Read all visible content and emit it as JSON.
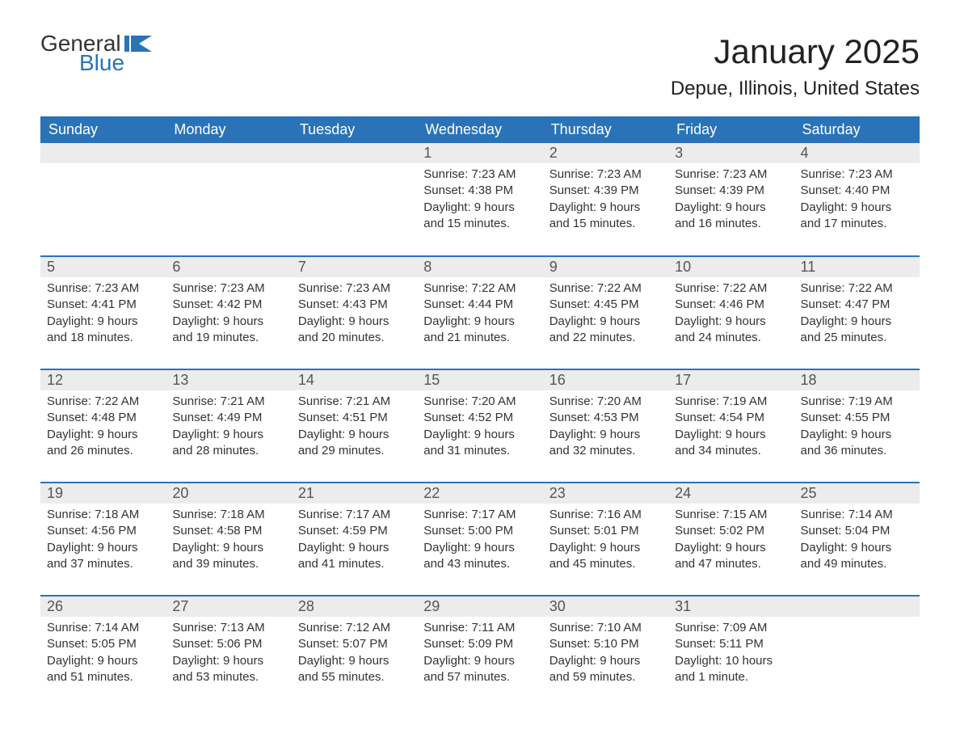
{
  "logo": {
    "word1": "General",
    "word2": "Blue"
  },
  "header": {
    "month_title": "January 2025",
    "location": "Depue, Illinois, United States"
  },
  "colors": {
    "header_bg": "#2a73b8",
    "header_text": "#ffffff",
    "daynum_bg": "#ececec",
    "daynum_text": "#555555",
    "body_text": "#333333",
    "page_bg": "#ffffff",
    "rule": "#2a73b8"
  },
  "typography": {
    "month_title_fontsize": 42,
    "location_fontsize": 24,
    "weekday_fontsize": 18,
    "daynum_fontsize": 18,
    "body_fontsize": 15
  },
  "weekdays": [
    "Sunday",
    "Monday",
    "Tuesday",
    "Wednesday",
    "Thursday",
    "Friday",
    "Saturday"
  ],
  "weeks": [
    [
      {
        "empty": true
      },
      {
        "empty": true
      },
      {
        "empty": true
      },
      {
        "n": "1",
        "sunrise": "Sunrise: 7:23 AM",
        "sunset": "Sunset: 4:38 PM",
        "dl1": "Daylight: 9 hours",
        "dl2": "and 15 minutes."
      },
      {
        "n": "2",
        "sunrise": "Sunrise: 7:23 AM",
        "sunset": "Sunset: 4:39 PM",
        "dl1": "Daylight: 9 hours",
        "dl2": "and 15 minutes."
      },
      {
        "n": "3",
        "sunrise": "Sunrise: 7:23 AM",
        "sunset": "Sunset: 4:39 PM",
        "dl1": "Daylight: 9 hours",
        "dl2": "and 16 minutes."
      },
      {
        "n": "4",
        "sunrise": "Sunrise: 7:23 AM",
        "sunset": "Sunset: 4:40 PM",
        "dl1": "Daylight: 9 hours",
        "dl2": "and 17 minutes."
      }
    ],
    [
      {
        "n": "5",
        "sunrise": "Sunrise: 7:23 AM",
        "sunset": "Sunset: 4:41 PM",
        "dl1": "Daylight: 9 hours",
        "dl2": "and 18 minutes."
      },
      {
        "n": "6",
        "sunrise": "Sunrise: 7:23 AM",
        "sunset": "Sunset: 4:42 PM",
        "dl1": "Daylight: 9 hours",
        "dl2": "and 19 minutes."
      },
      {
        "n": "7",
        "sunrise": "Sunrise: 7:23 AM",
        "sunset": "Sunset: 4:43 PM",
        "dl1": "Daylight: 9 hours",
        "dl2": "and 20 minutes."
      },
      {
        "n": "8",
        "sunrise": "Sunrise: 7:22 AM",
        "sunset": "Sunset: 4:44 PM",
        "dl1": "Daylight: 9 hours",
        "dl2": "and 21 minutes."
      },
      {
        "n": "9",
        "sunrise": "Sunrise: 7:22 AM",
        "sunset": "Sunset: 4:45 PM",
        "dl1": "Daylight: 9 hours",
        "dl2": "and 22 minutes."
      },
      {
        "n": "10",
        "sunrise": "Sunrise: 7:22 AM",
        "sunset": "Sunset: 4:46 PM",
        "dl1": "Daylight: 9 hours",
        "dl2": "and 24 minutes."
      },
      {
        "n": "11",
        "sunrise": "Sunrise: 7:22 AM",
        "sunset": "Sunset: 4:47 PM",
        "dl1": "Daylight: 9 hours",
        "dl2": "and 25 minutes."
      }
    ],
    [
      {
        "n": "12",
        "sunrise": "Sunrise: 7:22 AM",
        "sunset": "Sunset: 4:48 PM",
        "dl1": "Daylight: 9 hours",
        "dl2": "and 26 minutes."
      },
      {
        "n": "13",
        "sunrise": "Sunrise: 7:21 AM",
        "sunset": "Sunset: 4:49 PM",
        "dl1": "Daylight: 9 hours",
        "dl2": "and 28 minutes."
      },
      {
        "n": "14",
        "sunrise": "Sunrise: 7:21 AM",
        "sunset": "Sunset: 4:51 PM",
        "dl1": "Daylight: 9 hours",
        "dl2": "and 29 minutes."
      },
      {
        "n": "15",
        "sunrise": "Sunrise: 7:20 AM",
        "sunset": "Sunset: 4:52 PM",
        "dl1": "Daylight: 9 hours",
        "dl2": "and 31 minutes."
      },
      {
        "n": "16",
        "sunrise": "Sunrise: 7:20 AM",
        "sunset": "Sunset: 4:53 PM",
        "dl1": "Daylight: 9 hours",
        "dl2": "and 32 minutes."
      },
      {
        "n": "17",
        "sunrise": "Sunrise: 7:19 AM",
        "sunset": "Sunset: 4:54 PM",
        "dl1": "Daylight: 9 hours",
        "dl2": "and 34 minutes."
      },
      {
        "n": "18",
        "sunrise": "Sunrise: 7:19 AM",
        "sunset": "Sunset: 4:55 PM",
        "dl1": "Daylight: 9 hours",
        "dl2": "and 36 minutes."
      }
    ],
    [
      {
        "n": "19",
        "sunrise": "Sunrise: 7:18 AM",
        "sunset": "Sunset: 4:56 PM",
        "dl1": "Daylight: 9 hours",
        "dl2": "and 37 minutes."
      },
      {
        "n": "20",
        "sunrise": "Sunrise: 7:18 AM",
        "sunset": "Sunset: 4:58 PM",
        "dl1": "Daylight: 9 hours",
        "dl2": "and 39 minutes."
      },
      {
        "n": "21",
        "sunrise": "Sunrise: 7:17 AM",
        "sunset": "Sunset: 4:59 PM",
        "dl1": "Daylight: 9 hours",
        "dl2": "and 41 minutes."
      },
      {
        "n": "22",
        "sunrise": "Sunrise: 7:17 AM",
        "sunset": "Sunset: 5:00 PM",
        "dl1": "Daylight: 9 hours",
        "dl2": "and 43 minutes."
      },
      {
        "n": "23",
        "sunrise": "Sunrise: 7:16 AM",
        "sunset": "Sunset: 5:01 PM",
        "dl1": "Daylight: 9 hours",
        "dl2": "and 45 minutes."
      },
      {
        "n": "24",
        "sunrise": "Sunrise: 7:15 AM",
        "sunset": "Sunset: 5:02 PM",
        "dl1": "Daylight: 9 hours",
        "dl2": "and 47 minutes."
      },
      {
        "n": "25",
        "sunrise": "Sunrise: 7:14 AM",
        "sunset": "Sunset: 5:04 PM",
        "dl1": "Daylight: 9 hours",
        "dl2": "and 49 minutes."
      }
    ],
    [
      {
        "n": "26",
        "sunrise": "Sunrise: 7:14 AM",
        "sunset": "Sunset: 5:05 PM",
        "dl1": "Daylight: 9 hours",
        "dl2": "and 51 minutes."
      },
      {
        "n": "27",
        "sunrise": "Sunrise: 7:13 AM",
        "sunset": "Sunset: 5:06 PM",
        "dl1": "Daylight: 9 hours",
        "dl2": "and 53 minutes."
      },
      {
        "n": "28",
        "sunrise": "Sunrise: 7:12 AM",
        "sunset": "Sunset: 5:07 PM",
        "dl1": "Daylight: 9 hours",
        "dl2": "and 55 minutes."
      },
      {
        "n": "29",
        "sunrise": "Sunrise: 7:11 AM",
        "sunset": "Sunset: 5:09 PM",
        "dl1": "Daylight: 9 hours",
        "dl2": "and 57 minutes."
      },
      {
        "n": "30",
        "sunrise": "Sunrise: 7:10 AM",
        "sunset": "Sunset: 5:10 PM",
        "dl1": "Daylight: 9 hours",
        "dl2": "and 59 minutes."
      },
      {
        "n": "31",
        "sunrise": "Sunrise: 7:09 AM",
        "sunset": "Sunset: 5:11 PM",
        "dl1": "Daylight: 10 hours",
        "dl2": "and 1 minute."
      },
      {
        "empty": true
      }
    ]
  ]
}
